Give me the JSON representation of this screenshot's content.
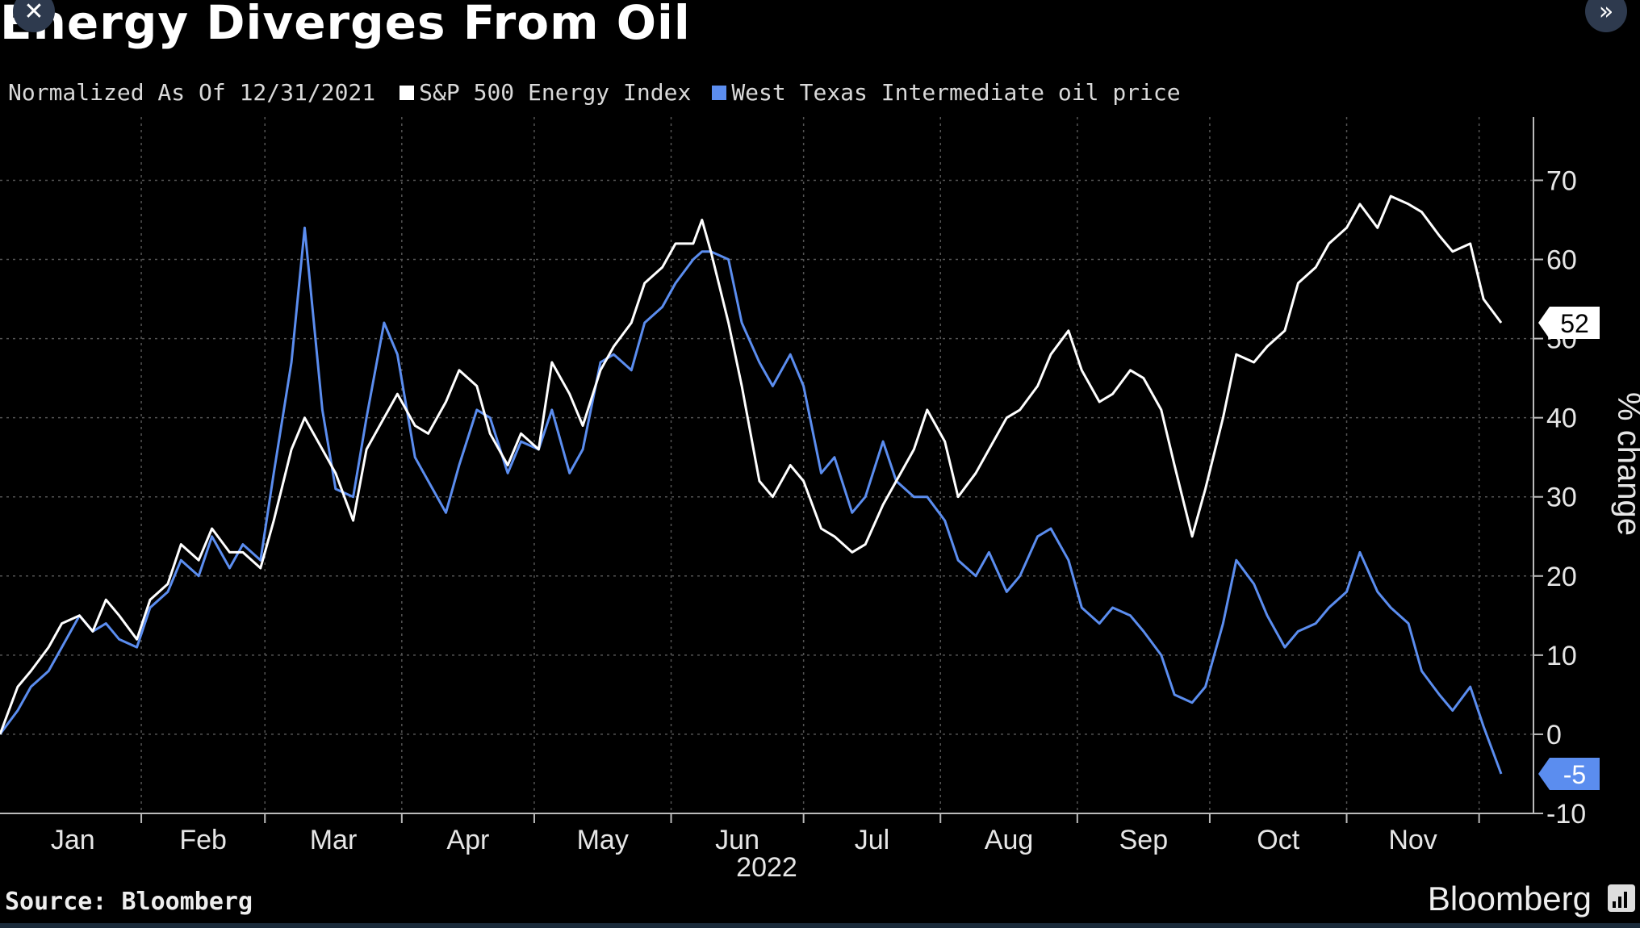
{
  "window": {
    "close_icon": "close-icon",
    "expand_icon": "double-chevron-right-icon"
  },
  "chart_data": {
    "type": "line",
    "title": "Energy Diverges From Oil",
    "subtitle": "Normalized As Of 12/31/2021",
    "ylabel": "% change",
    "xlabel": "2022",
    "ylim": [
      -10,
      78
    ],
    "yticks": [
      -10,
      0,
      10,
      20,
      30,
      40,
      50,
      60,
      70
    ],
    "grid": true,
    "legend_position": "top-left",
    "month_labels": [
      "Jan",
      "Feb",
      "Mar",
      "Apr",
      "May",
      "Jun",
      "Jul",
      "Aug",
      "Sep",
      "Oct",
      "Nov"
    ],
    "month_starts": [
      "2022-01-01",
      "2022-02-01",
      "2022-03-01",
      "2022-04-01",
      "2022-05-01",
      "2022-06-01",
      "2022-07-01",
      "2022-08-01",
      "2022-09-01",
      "2022-10-01",
      "2022-11-01",
      "2022-12-01"
    ],
    "x_range": [
      "2021-12-31",
      "2022-12-06"
    ],
    "series": [
      {
        "name": "S&P 500 Energy Index",
        "color": "#ffffff",
        "end_label": "52",
        "points": [
          [
            "2021-12-31",
            0
          ],
          [
            "2022-01-04",
            6
          ],
          [
            "2022-01-07",
            8
          ],
          [
            "2022-01-11",
            11
          ],
          [
            "2022-01-14",
            14
          ],
          [
            "2022-01-18",
            15
          ],
          [
            "2022-01-21",
            13
          ],
          [
            "2022-01-24",
            17
          ],
          [
            "2022-01-27",
            15
          ],
          [
            "2022-01-31",
            12
          ],
          [
            "2022-02-03",
            17
          ],
          [
            "2022-02-07",
            19
          ],
          [
            "2022-02-10",
            24
          ],
          [
            "2022-02-14",
            22
          ],
          [
            "2022-02-17",
            26
          ],
          [
            "2022-02-21",
            23
          ],
          [
            "2022-02-24",
            23
          ],
          [
            "2022-02-28",
            21
          ],
          [
            "2022-03-03",
            27
          ],
          [
            "2022-03-07",
            36
          ],
          [
            "2022-03-10",
            40
          ],
          [
            "2022-03-14",
            36
          ],
          [
            "2022-03-17",
            33
          ],
          [
            "2022-03-21",
            27
          ],
          [
            "2022-03-24",
            36
          ],
          [
            "2022-03-28",
            40
          ],
          [
            "2022-03-31",
            43
          ],
          [
            "2022-04-04",
            39
          ],
          [
            "2022-04-07",
            38
          ],
          [
            "2022-04-11",
            42
          ],
          [
            "2022-04-14",
            46
          ],
          [
            "2022-04-18",
            44
          ],
          [
            "2022-04-21",
            38
          ],
          [
            "2022-04-25",
            34
          ],
          [
            "2022-04-28",
            38
          ],
          [
            "2022-05-02",
            36
          ],
          [
            "2022-05-05",
            47
          ],
          [
            "2022-05-09",
            43
          ],
          [
            "2022-05-12",
            39
          ],
          [
            "2022-05-16",
            46
          ],
          [
            "2022-05-19",
            49
          ],
          [
            "2022-05-23",
            52
          ],
          [
            "2022-05-26",
            57
          ],
          [
            "2022-05-30",
            59
          ],
          [
            "2022-06-02",
            62
          ],
          [
            "2022-06-06",
            62
          ],
          [
            "2022-06-08",
            65
          ],
          [
            "2022-06-10",
            61
          ],
          [
            "2022-06-14",
            52
          ],
          [
            "2022-06-17",
            44
          ],
          [
            "2022-06-21",
            32
          ],
          [
            "2022-06-24",
            30
          ],
          [
            "2022-06-28",
            34
          ],
          [
            "2022-07-01",
            32
          ],
          [
            "2022-07-05",
            26
          ],
          [
            "2022-07-08",
            25
          ],
          [
            "2022-07-12",
            23
          ],
          [
            "2022-07-15",
            24
          ],
          [
            "2022-07-19",
            29
          ],
          [
            "2022-07-22",
            32
          ],
          [
            "2022-07-26",
            36
          ],
          [
            "2022-07-29",
            41
          ],
          [
            "2022-08-02",
            37
          ],
          [
            "2022-08-05",
            30
          ],
          [
            "2022-08-09",
            33
          ],
          [
            "2022-08-12",
            36
          ],
          [
            "2022-08-16",
            40
          ],
          [
            "2022-08-19",
            41
          ],
          [
            "2022-08-23",
            44
          ],
          [
            "2022-08-26",
            48
          ],
          [
            "2022-08-30",
            51
          ],
          [
            "2022-09-02",
            46
          ],
          [
            "2022-09-06",
            42
          ],
          [
            "2022-09-09",
            43
          ],
          [
            "2022-09-13",
            46
          ],
          [
            "2022-09-16",
            45
          ],
          [
            "2022-09-20",
            41
          ],
          [
            "2022-09-23",
            34
          ],
          [
            "2022-09-27",
            25
          ],
          [
            "2022-09-30",
            31
          ],
          [
            "2022-10-04",
            40
          ],
          [
            "2022-10-07",
            48
          ],
          [
            "2022-10-11",
            47
          ],
          [
            "2022-10-14",
            49
          ],
          [
            "2022-10-18",
            51
          ],
          [
            "2022-10-21",
            57
          ],
          [
            "2022-10-25",
            59
          ],
          [
            "2022-10-28",
            62
          ],
          [
            "2022-11-01",
            64
          ],
          [
            "2022-11-04",
            67
          ],
          [
            "2022-11-08",
            64
          ],
          [
            "2022-11-11",
            68
          ],
          [
            "2022-11-15",
            67
          ],
          [
            "2022-11-18",
            66
          ],
          [
            "2022-11-22",
            63
          ],
          [
            "2022-11-25",
            61
          ],
          [
            "2022-11-29",
            62
          ],
          [
            "2022-12-02",
            55
          ],
          [
            "2022-12-06",
            52
          ]
        ]
      },
      {
        "name": "West Texas Intermediate oil price",
        "color": "#5b8def",
        "end_label": "-5",
        "points": [
          [
            "2021-12-31",
            0
          ],
          [
            "2022-01-04",
            3
          ],
          [
            "2022-01-07",
            6
          ],
          [
            "2022-01-11",
            8
          ],
          [
            "2022-01-14",
            11
          ],
          [
            "2022-01-18",
            15
          ],
          [
            "2022-01-21",
            13
          ],
          [
            "2022-01-24",
            14
          ],
          [
            "2022-01-27",
            12
          ],
          [
            "2022-01-31",
            11
          ],
          [
            "2022-02-03",
            16
          ],
          [
            "2022-02-07",
            18
          ],
          [
            "2022-02-10",
            22
          ],
          [
            "2022-02-14",
            20
          ],
          [
            "2022-02-17",
            25
          ],
          [
            "2022-02-21",
            21
          ],
          [
            "2022-02-24",
            24
          ],
          [
            "2022-02-28",
            22
          ],
          [
            "2022-03-03",
            33
          ],
          [
            "2022-03-07",
            47
          ],
          [
            "2022-03-10",
            64
          ],
          [
            "2022-03-14",
            41
          ],
          [
            "2022-03-17",
            31
          ],
          [
            "2022-03-21",
            30
          ],
          [
            "2022-03-24",
            40
          ],
          [
            "2022-03-28",
            52
          ],
          [
            "2022-03-31",
            48
          ],
          [
            "2022-04-04",
            35
          ],
          [
            "2022-04-07",
            32
          ],
          [
            "2022-04-11",
            28
          ],
          [
            "2022-04-14",
            34
          ],
          [
            "2022-04-18",
            41
          ],
          [
            "2022-04-21",
            40
          ],
          [
            "2022-04-25",
            33
          ],
          [
            "2022-04-28",
            37
          ],
          [
            "2022-05-02",
            36
          ],
          [
            "2022-05-05",
            41
          ],
          [
            "2022-05-09",
            33
          ],
          [
            "2022-05-12",
            36
          ],
          [
            "2022-05-16",
            47
          ],
          [
            "2022-05-19",
            48
          ],
          [
            "2022-05-23",
            46
          ],
          [
            "2022-05-26",
            52
          ],
          [
            "2022-05-30",
            54
          ],
          [
            "2022-06-02",
            57
          ],
          [
            "2022-06-06",
            60
          ],
          [
            "2022-06-08",
            61
          ],
          [
            "2022-06-10",
            61
          ],
          [
            "2022-06-14",
            60
          ],
          [
            "2022-06-17",
            52
          ],
          [
            "2022-06-21",
            47
          ],
          [
            "2022-06-24",
            44
          ],
          [
            "2022-06-28",
            48
          ],
          [
            "2022-07-01",
            44
          ],
          [
            "2022-07-05",
            33
          ],
          [
            "2022-07-08",
            35
          ],
          [
            "2022-07-12",
            28
          ],
          [
            "2022-07-15",
            30
          ],
          [
            "2022-07-19",
            37
          ],
          [
            "2022-07-22",
            32
          ],
          [
            "2022-07-26",
            30
          ],
          [
            "2022-07-29",
            30
          ],
          [
            "2022-08-02",
            27
          ],
          [
            "2022-08-05",
            22
          ],
          [
            "2022-08-09",
            20
          ],
          [
            "2022-08-12",
            23
          ],
          [
            "2022-08-16",
            18
          ],
          [
            "2022-08-19",
            20
          ],
          [
            "2022-08-23",
            25
          ],
          [
            "2022-08-26",
            26
          ],
          [
            "2022-08-30",
            22
          ],
          [
            "2022-09-02",
            16
          ],
          [
            "2022-09-06",
            14
          ],
          [
            "2022-09-09",
            16
          ],
          [
            "2022-09-13",
            15
          ],
          [
            "2022-09-16",
            13
          ],
          [
            "2022-09-20",
            10
          ],
          [
            "2022-09-23",
            5
          ],
          [
            "2022-09-27",
            4
          ],
          [
            "2022-09-30",
            6
          ],
          [
            "2022-10-04",
            14
          ],
          [
            "2022-10-07",
            22
          ],
          [
            "2022-10-11",
            19
          ],
          [
            "2022-10-14",
            15
          ],
          [
            "2022-10-18",
            11
          ],
          [
            "2022-10-21",
            13
          ],
          [
            "2022-10-25",
            14
          ],
          [
            "2022-10-28",
            16
          ],
          [
            "2022-11-01",
            18
          ],
          [
            "2022-11-04",
            23
          ],
          [
            "2022-11-08",
            18
          ],
          [
            "2022-11-11",
            16
          ],
          [
            "2022-11-15",
            14
          ],
          [
            "2022-11-18",
            8
          ],
          [
            "2022-11-22",
            5
          ],
          [
            "2022-11-25",
            3
          ],
          [
            "2022-11-29",
            6
          ],
          [
            "2022-12-02",
            1
          ],
          [
            "2022-12-06",
            -5
          ]
        ]
      }
    ],
    "source": "Source: Bloomberg",
    "brand": "Bloomberg"
  }
}
